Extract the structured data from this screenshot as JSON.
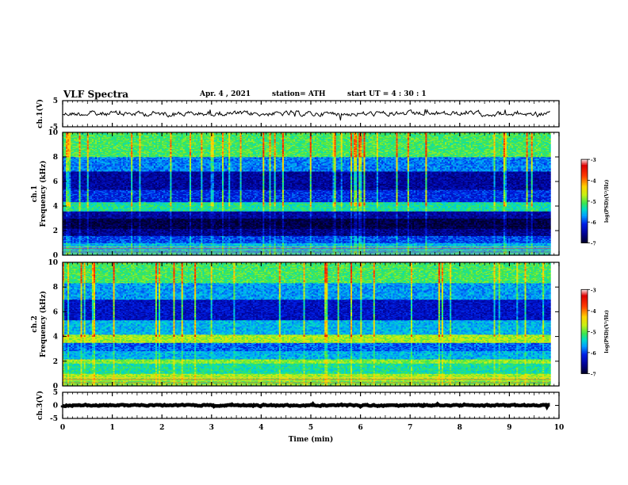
{
  "header": {
    "title": "VLF Spectra",
    "date": "Apr. 4 , 2021",
    "station": "station= ATH",
    "start": "start UT = 4 : 30 : 1"
  },
  "chart_data": [
    {
      "type": "line",
      "panel": "ch1-waveform",
      "ylabel": "ch.1(V)",
      "ylim": [
        -5,
        5
      ],
      "yticks": [
        "5",
        "-5"
      ],
      "x_range_min": [
        0,
        9.83
      ],
      "level_V": 0,
      "noise_V": 1.1
    },
    {
      "type": "heatmap",
      "panel": "ch1-spectrogram",
      "ylabel": "ch.1\nFrequency (kHz)",
      "ylim": [
        0,
        10
      ],
      "yticks": [
        "0",
        "2",
        "4",
        "6",
        "8",
        "10"
      ],
      "x_range_min": [
        0,
        9.83
      ],
      "colorbar": {
        "label": "log(PSD)(V²/Hz)",
        "ticks": [
          "-3",
          "-4",
          "-5",
          "-6",
          "-7"
        ],
        "range": [
          -7,
          -3
        ]
      },
      "bands": [
        {
          "f": [
            0,
            0.3
          ],
          "lpsd": -5.5
        },
        {
          "f": [
            0.3,
            1.0
          ],
          "lpsd": -5.6
        },
        {
          "f": [
            1.0,
            1.6
          ],
          "lpsd": -6.0
        },
        {
          "f": [
            1.6,
            2.2
          ],
          "lpsd": -6.6
        },
        {
          "f": [
            2.2,
            3.0
          ],
          "lpsd": -6.9
        },
        {
          "f": [
            3.0,
            3.6
          ],
          "lpsd": -6.5
        },
        {
          "f": [
            3.6,
            4.3
          ],
          "lpsd": -5.3
        },
        {
          "f": [
            4.3,
            5.3
          ],
          "lpsd": -6.1
        },
        {
          "f": [
            5.3,
            6.8
          ],
          "lpsd": -6.5
        },
        {
          "f": [
            6.8,
            8.0
          ],
          "lpsd": -5.8
        },
        {
          "f": [
            8.0,
            10.0
          ],
          "lpsd": -5.1
        }
      ]
    },
    {
      "type": "heatmap",
      "panel": "ch2-spectrogram",
      "ylabel": "ch.2\nFrequency (kHz)",
      "ylim": [
        0,
        10
      ],
      "yticks": [
        "0",
        "2",
        "4",
        "6",
        "8",
        "10"
      ],
      "x_range_min": [
        0,
        9.83
      ],
      "colorbar": {
        "label": "log(PSD)(V²/Hz)",
        "ticks": [
          "-3",
          "-4",
          "-5",
          "-6",
          "-7"
        ],
        "range": [
          -7,
          -3
        ]
      },
      "bands": [
        {
          "f": [
            0,
            0.5
          ],
          "lpsd": -5.0
        },
        {
          "f": [
            0.5,
            1.0
          ],
          "lpsd": -4.8
        },
        {
          "f": [
            1.0,
            1.8
          ],
          "lpsd": -5.3
        },
        {
          "f": [
            1.8,
            2.2
          ],
          "lpsd": -4.9
        },
        {
          "f": [
            2.2,
            2.8
          ],
          "lpsd": -5.6
        },
        {
          "f": [
            2.8,
            3.5
          ],
          "lpsd": -5.9
        },
        {
          "f": [
            3.5,
            4.2
          ],
          "lpsd": -4.8
        },
        {
          "f": [
            4.2,
            5.3
          ],
          "lpsd": -5.6
        },
        {
          "f": [
            5.3,
            7.0
          ],
          "lpsd": -6.3
        },
        {
          "f": [
            7.0,
            8.3
          ],
          "lpsd": -5.7
        },
        {
          "f": [
            8.3,
            10.0
          ],
          "lpsd": -5.1
        }
      ]
    },
    {
      "type": "line",
      "panel": "ch3-waveform",
      "ylabel": "ch.3(V)",
      "ylim": [
        -5,
        5
      ],
      "yticks": [
        "5",
        "0",
        "-5"
      ],
      "x_range_min": [
        0,
        9.83
      ],
      "level_V": 0,
      "noise_V": 0.3
    }
  ],
  "xaxis": {
    "label": "Time (min)",
    "ticks": [
      "0",
      "1",
      "2",
      "3",
      "4",
      "5",
      "6",
      "7",
      "8",
      "9",
      "10"
    ],
    "range": [
      0,
      10
    ]
  }
}
